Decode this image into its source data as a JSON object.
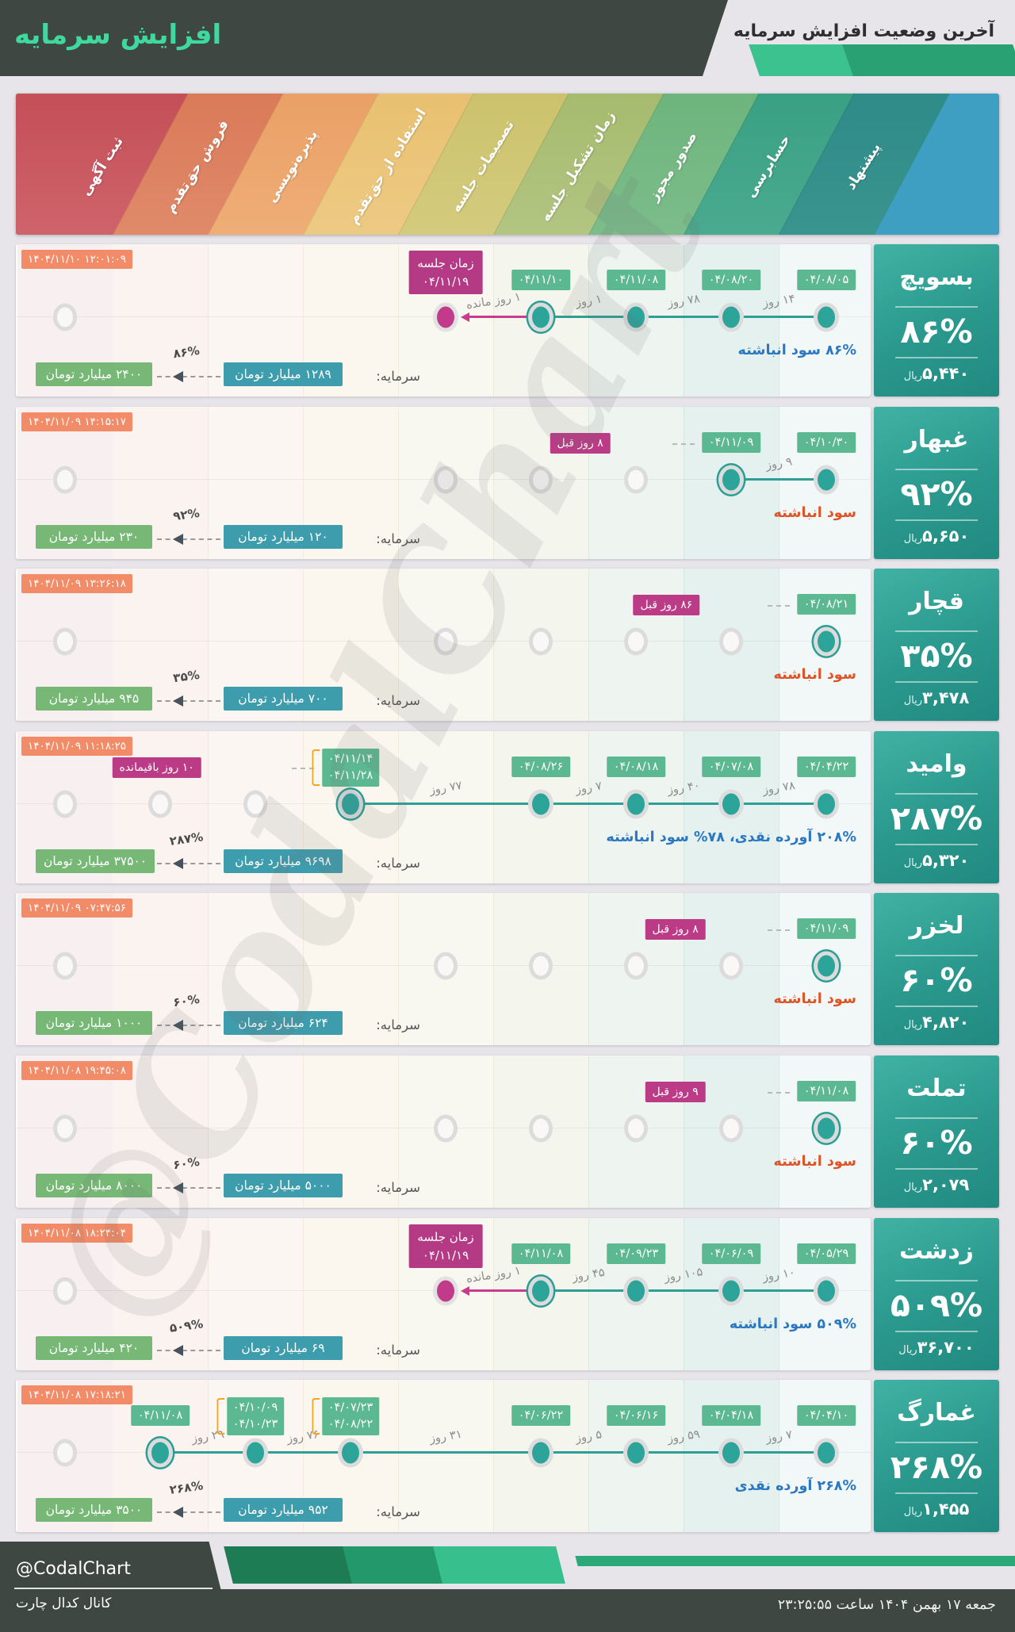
{
  "header": {
    "title": "افزایش سرمایه",
    "subtitle": "آخرین وضعیت افزایش سرمایه"
  },
  "stages": [
    {
      "label": "ثبت آگهی",
      "c1": "#c44f58",
      "c2": "#cf636b",
      "tint": "rgba(196,79,88,0.08)"
    },
    {
      "label": "فروش حق‌تقدم",
      "c1": "#da7a58",
      "c2": "#e08a6a",
      "tint": "rgba(218,122,88,0.08)"
    },
    {
      "label": "پذیره‌نویسی",
      "c1": "#eaa066",
      "c2": "#efae77",
      "tint": "rgba(234,160,102,0.08)"
    },
    {
      "label": "استفاده از حق‌تقدم",
      "c1": "#e9c070",
      "c2": "#edca84",
      "tint": "rgba(233,192,112,0.10)"
    },
    {
      "label": "تصمیمات جلسه",
      "c1": "#ccc26d",
      "c2": "#d4cb7e",
      "tint": "rgba(204,194,109,0.09)"
    },
    {
      "label": "زمان تشکیل جلسه",
      "c1": "#a6bb6e",
      "c2": "#b2c582",
      "tint": "rgba(166,187,110,0.10)"
    },
    {
      "label": "صدور مجوز",
      "c1": "#6eb47d",
      "c2": "#7cbd8b",
      "tint": "rgba(110,180,125,0.10)"
    },
    {
      "label": "حسابرسی",
      "c1": "#3aa083",
      "c2": "#49aa8f",
      "tint": "rgba(58,160,131,0.12)"
    },
    {
      "label": "پیشنهاد",
      "c1": "#2e8b88",
      "c2": "#3a948f",
      "tint": "rgba(46,139,136,0.05)"
    }
  ],
  "band_end_color": "#3f9fc2",
  "labels": {
    "capital": "سرمایه:",
    "rial": "ریال"
  },
  "status_colors": {
    "blue": "#2b78c2",
    "orange": "#dd5426"
  },
  "rows": [
    {
      "name": "بسویچ",
      "timestamp": "۱۴۰۴/۱۱/۱۰ ۱۲:۰۱:۰۹",
      "percent": "۸۶%",
      "price": "۵,۴۴۰",
      "status": {
        "text": "۸۶% سود انباشته",
        "color": "blue"
      },
      "capital": "۱۲۸۹ میلیارد تومان",
      "target": "۲۴۰۰ میلیارد تومان",
      "growth": "۸۶%",
      "ghosts": [
        0
      ],
      "dots": [
        {
          "col": 4,
          "type": "meeting",
          "lines": [
            "زمان جلسه",
            "۰۴/۱۱/۱۹"
          ]
        },
        {
          "col": 5,
          "type": "current",
          "date": "۰۴/۱۱/۱۰"
        },
        {
          "col": 6,
          "type": "done",
          "date": "۰۴/۱۱/۰۸"
        },
        {
          "col": 7,
          "type": "done",
          "date": "۰۴/۰۸/۲۰"
        },
        {
          "col": 8,
          "type": "done",
          "date": "۰۴/۰۸/۰۵"
        }
      ],
      "segments": [
        {
          "from": 4,
          "to": 5,
          "label": "۱ روز مانده",
          "style": "remain"
        },
        {
          "from": 5,
          "to": 6,
          "label": "۱ روز"
        },
        {
          "from": 6,
          "to": 7,
          "label": "۷۸ روز"
        },
        {
          "from": 7,
          "to": 8,
          "label": "۱۴ روز"
        }
      ]
    },
    {
      "name": "غبهار",
      "timestamp": "۱۴۰۴/۱۱/۰۹ ۱۴:۱۵:۱۷",
      "percent": "۹۲%",
      "price": "۵,۶۵۰",
      "status": {
        "text": "سود انباشته",
        "color": "orange"
      },
      "capital": "۱۲۰ میلیارد تومان",
      "target": "۲۳۰ میلیارد تومان",
      "growth": "۹۲%",
      "ghosts": [
        0,
        4,
        5,
        6
      ],
      "dots": [
        {
          "col": 7,
          "type": "current",
          "date": "۰۴/۱۱/۰۹",
          "side_badge": "۸ روز قبل"
        },
        {
          "col": 8,
          "type": "done",
          "date": "۰۴/۱۰/۳۰"
        }
      ],
      "segments": [
        {
          "from": 7,
          "to": 8,
          "label": "۹ روز"
        }
      ]
    },
    {
      "name": "قچار",
      "timestamp": "۱۴۰۴/۱۱/۰۹ ۱۳:۲۶:۱۸",
      "percent": "۳۵%",
      "price": "۳,۴۷۸",
      "status": {
        "text": "سود انباشته",
        "color": "orange"
      },
      "capital": "۷۰۰ میلیارد تومان",
      "target": "۹۴۵ میلیارد تومان",
      "growth": "۳۵%",
      "ghosts": [
        0,
        4,
        5,
        6,
        7
      ],
      "dots": [
        {
          "col": 8,
          "type": "current",
          "date": "۰۴/۰۸/۲۱",
          "side_badge": "۸۶ روز قبل"
        }
      ],
      "segments": []
    },
    {
      "name": "وامید",
      "timestamp": "۱۴۰۴/۱۱/۰۹ ۱۱:۱۸:۲۵",
      "percent": "۲۸۷%",
      "price": "۵,۳۲۰",
      "status": {
        "text": "۲۰۸% آورده نقدی، ۷۸% سود انباشته",
        "color": "blue"
      },
      "capital": "۹۶۹۸ میلیارد تومان",
      "target": "۳۷۵۰۰ میلیارد تومان",
      "growth": "۲۸۷%",
      "ghosts": [
        0,
        1,
        2
      ],
      "dots": [
        {
          "col": 3,
          "type": "current",
          "dates": [
            "۰۴/۱۱/۱۴",
            "۰۴/۱۱/۲۸"
          ],
          "bracket": true,
          "side_badge": "۱۰ روز باقیمانده"
        },
        {
          "col": 5,
          "type": "done",
          "date": "۰۴/۰۸/۲۶"
        },
        {
          "col": 6,
          "type": "done",
          "date": "۰۴/۰۸/۱۸"
        },
        {
          "col": 7,
          "type": "done",
          "date": "۰۴/۰۷/۰۸"
        },
        {
          "col": 8,
          "type": "done",
          "date": "۰۴/۰۴/۲۲"
        }
      ],
      "segments": [
        {
          "from": 3,
          "to": 5,
          "label": "۷۷ روز"
        },
        {
          "from": 5,
          "to": 6,
          "label": "۷ روز"
        },
        {
          "from": 6,
          "to": 7,
          "label": "۴۰ روز"
        },
        {
          "from": 7,
          "to": 8,
          "label": "۷۸ روز"
        }
      ]
    },
    {
      "name": "لخزر",
      "timestamp": "۱۴۰۴/۱۱/۰۹ ۰۷:۴۷:۵۶",
      "percent": "۶۰%",
      "price": "۴,۸۲۰",
      "status": {
        "text": "سود انباشته",
        "color": "orange"
      },
      "capital": "۶۲۴ میلیارد تومان",
      "target": "۱۰۰۰ میلیارد تومان",
      "growth": "۶۰%",
      "ghosts": [
        0,
        4,
        5,
        6,
        7
      ],
      "dots": [
        {
          "col": 8,
          "type": "current",
          "date": "۰۴/۱۱/۰۹",
          "side_badge": "۸ روز قبل"
        }
      ],
      "segments": []
    },
    {
      "name": "تملت",
      "timestamp": "۱۴۰۴/۱۱/۰۸ ۱۹:۴۵:۰۸",
      "percent": "۶۰%",
      "price": "۲,۰۷۹",
      "status": {
        "text": "سود انباشته",
        "color": "orange"
      },
      "capital": "۵۰۰۰ میلیارد تومان",
      "target": "۸۰۰۰ میلیارد تومان",
      "growth": "۶۰%",
      "ghosts": [
        0,
        4,
        5,
        6,
        7
      ],
      "dots": [
        {
          "col": 8,
          "type": "current",
          "date": "۰۴/۱۱/۰۸",
          "side_badge": "۹ روز قبل"
        }
      ],
      "segments": []
    },
    {
      "name": "زدشت",
      "timestamp": "۱۴۰۴/۱۱/۰۸ ۱۸:۲۴:۰۴",
      "percent": "۵۰۹%",
      "price": "۳۶,۷۰۰",
      "status": {
        "text": "۵۰۹% سود انباشته",
        "color": "blue"
      },
      "capital": "۶۹ میلیارد تومان",
      "target": "۴۲۰ میلیارد تومان",
      "growth": "۵۰۹%",
      "ghosts": [
        0
      ],
      "dots": [
        {
          "col": 4,
          "type": "meeting",
          "lines": [
            "زمان جلسه",
            "۰۴/۱۱/۱۹"
          ]
        },
        {
          "col": 5,
          "type": "current",
          "date": "۰۴/۱۱/۰۸"
        },
        {
          "col": 6,
          "type": "done",
          "date": "۰۴/۰۹/۲۳"
        },
        {
          "col": 7,
          "type": "done",
          "date": "۰۴/۰۶/۰۹"
        },
        {
          "col": 8,
          "type": "done",
          "date": "۰۴/۰۵/۲۹"
        }
      ],
      "segments": [
        {
          "from": 4,
          "to": 5,
          "label": "۱ روز مانده",
          "style": "remain"
        },
        {
          "from": 5,
          "to": 6,
          "label": "۴۵ روز"
        },
        {
          "from": 6,
          "to": 7,
          "label": "۱۰۵ روز"
        },
        {
          "from": 7,
          "to": 8,
          "label": "۱۰ روز"
        }
      ]
    },
    {
      "name": "غمارگ",
      "timestamp": "۱۴۰۴/۱۱/۰۸ ۱۷:۱۸:۲۱",
      "percent": "۲۶۸%",
      "price": "۱,۴۵۵",
      "status": {
        "text": "۲۶۸% آورده نقدی",
        "color": "blue"
      },
      "capital": "۹۵۲ میلیارد تومان",
      "target": "۳۵۰۰ میلیارد تومان",
      "growth": "۲۶۸%",
      "ghosts": [
        0
      ],
      "dots": [
        {
          "col": 1,
          "type": "current",
          "date": "۰۴/۱۱/۰۸"
        },
        {
          "col": 2,
          "type": "done",
          "dates": [
            "۰۴/۱۰/۰۹",
            "۰۴/۱۰/۲۳"
          ],
          "bracket": true
        },
        {
          "col": 3,
          "type": "done",
          "dates": [
            "۰۴/۰۷/۲۳",
            "۰۴/۰۸/۲۲"
          ],
          "bracket": true
        },
        {
          "col": 5,
          "type": "done",
          "date": "۰۴/۰۶/۲۲"
        },
        {
          "col": 6,
          "type": "done",
          "date": "۰۴/۰۶/۱۶"
        },
        {
          "col": 7,
          "type": "done",
          "date": "۰۴/۰۴/۱۸"
        },
        {
          "col": 8,
          "type": "done",
          "date": "۰۴/۰۴/۱۰"
        }
      ],
      "segments": [
        {
          "from": 1,
          "to": 2,
          "label": "۲۹ روز"
        },
        {
          "from": 2,
          "to": 3,
          "label": "۷۶ روز"
        },
        {
          "from": 3,
          "to": 5,
          "label": "۳۱ روز"
        },
        {
          "from": 5,
          "to": 6,
          "label": "۵ روز"
        },
        {
          "from": 6,
          "to": 7,
          "label": "۵۹ روز"
        },
        {
          "from": 7,
          "to": 8,
          "label": "۷ روز"
        }
      ]
    }
  ],
  "footer": {
    "handle": "@CodalChart",
    "channel": "کانال کدال چارت",
    "date": "جمعه ۱۷ بهمن ۱۴۰۴ ساعت ۲۳:۲۵:۵۵"
  },
  "watermark": "@CodalChart"
}
